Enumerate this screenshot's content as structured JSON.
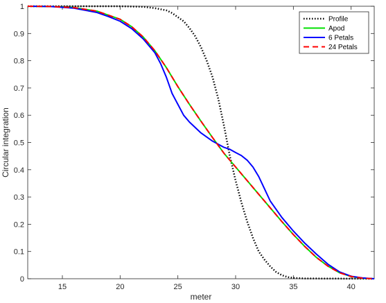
{
  "chart_data": {
    "type": "line",
    "xlabel": "meter",
    "ylabel": "Circular integration",
    "xlim": [
      12,
      42
    ],
    "ylim": [
      0,
      1
    ],
    "xticks": [
      15,
      20,
      25,
      30,
      35,
      40
    ],
    "yticks": [
      0,
      0.1,
      0.2,
      0.3,
      0.4,
      0.5,
      0.6,
      0.7,
      0.8,
      0.9,
      1
    ],
    "grid": false,
    "legend_position": "top-right",
    "series": [
      {
        "name": "Profile",
        "color": "#000000",
        "style": "dotted",
        "x": [
          12,
          20,
          22,
          23,
          24,
          24.5,
          25,
          25.5,
          26,
          26.5,
          27,
          27.5,
          28,
          28.5,
          29,
          29.5,
          30,
          30.5,
          31,
          31.5,
          32,
          32.5,
          33,
          33.5,
          34,
          34.5,
          35,
          36,
          42
        ],
        "y": [
          1,
          1,
          0.998,
          0.993,
          0.985,
          0.975,
          0.96,
          0.945,
          0.92,
          0.89,
          0.85,
          0.8,
          0.74,
          0.66,
          0.56,
          0.45,
          0.36,
          0.28,
          0.21,
          0.15,
          0.1,
          0.07,
          0.045,
          0.025,
          0.013,
          0.006,
          0.003,
          0.001,
          0
        ]
      },
      {
        "name": "Apod",
        "color": "#00e000",
        "style": "solid",
        "x": [
          12,
          14,
          16,
          18,
          20,
          21,
          22,
          23,
          24,
          25,
          26,
          27,
          28,
          29,
          30,
          31,
          32,
          33,
          34,
          35,
          36,
          37,
          38,
          39,
          40,
          41,
          42
        ],
        "y": [
          1,
          0.999,
          0.995,
          0.982,
          0.952,
          0.925,
          0.887,
          0.837,
          0.775,
          0.705,
          0.64,
          0.578,
          0.518,
          0.46,
          0.41,
          0.36,
          0.31,
          0.26,
          0.21,
          0.162,
          0.118,
          0.078,
          0.046,
          0.022,
          0.008,
          0.002,
          0
        ]
      },
      {
        "name": "6 Petals",
        "color": "#0000ff",
        "style": "solid",
        "x": [
          12,
          14,
          16,
          18,
          19,
          20,
          21,
          22,
          23,
          23.5,
          24,
          24.5,
          25,
          25.5,
          26,
          27,
          28,
          29,
          29.5,
          30,
          30.5,
          31,
          31.5,
          32,
          32.5,
          33,
          34,
          35,
          36,
          37,
          38,
          39,
          40,
          41,
          42
        ],
        "y": [
          1,
          0.999,
          0.993,
          0.977,
          0.962,
          0.945,
          0.918,
          0.88,
          0.83,
          0.79,
          0.74,
          0.68,
          0.64,
          0.6,
          0.575,
          0.535,
          0.505,
          0.482,
          0.475,
          0.463,
          0.452,
          0.435,
          0.41,
          0.375,
          0.33,
          0.285,
          0.225,
          0.175,
          0.13,
          0.09,
          0.053,
          0.025,
          0.009,
          0.003,
          0
        ]
      },
      {
        "name": "24 Petals",
        "color": "#ff0000",
        "style": "dashed",
        "x": [
          12,
          14,
          16,
          18,
          20,
          21,
          22,
          23,
          24,
          25,
          26,
          27,
          28,
          29,
          30,
          31,
          32,
          33,
          34,
          35,
          36,
          37,
          38,
          39,
          40,
          41,
          42
        ],
        "y": [
          1,
          0.999,
          0.995,
          0.982,
          0.952,
          0.925,
          0.887,
          0.837,
          0.775,
          0.705,
          0.64,
          0.578,
          0.518,
          0.46,
          0.41,
          0.36,
          0.31,
          0.26,
          0.21,
          0.162,
          0.118,
          0.078,
          0.046,
          0.022,
          0.008,
          0.002,
          0
        ]
      }
    ]
  }
}
